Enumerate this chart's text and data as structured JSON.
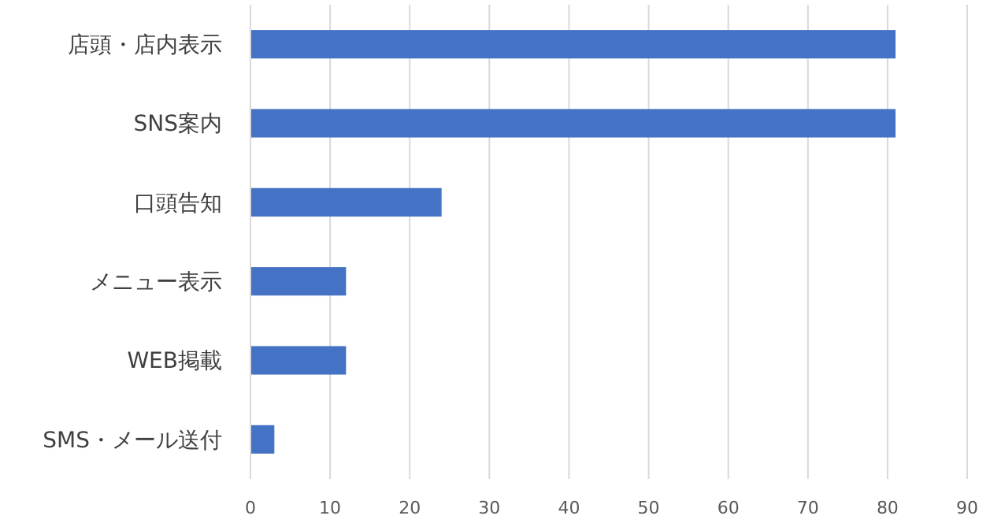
{
  "chart_data": {
    "type": "bar",
    "orientation": "horizontal",
    "categories": [
      "店頭・店内表示",
      "SNS案内",
      "口頭告知",
      "メニュー表示",
      "WEB掲載",
      "SMS・メール送付"
    ],
    "values": [
      81,
      81,
      24,
      12,
      12,
      3
    ],
    "color": "#4472c4",
    "xlim": [
      0,
      90
    ],
    "xticks": [
      0,
      10,
      20,
      30,
      40,
      50,
      60,
      70,
      80,
      90
    ],
    "grid": "x"
  }
}
